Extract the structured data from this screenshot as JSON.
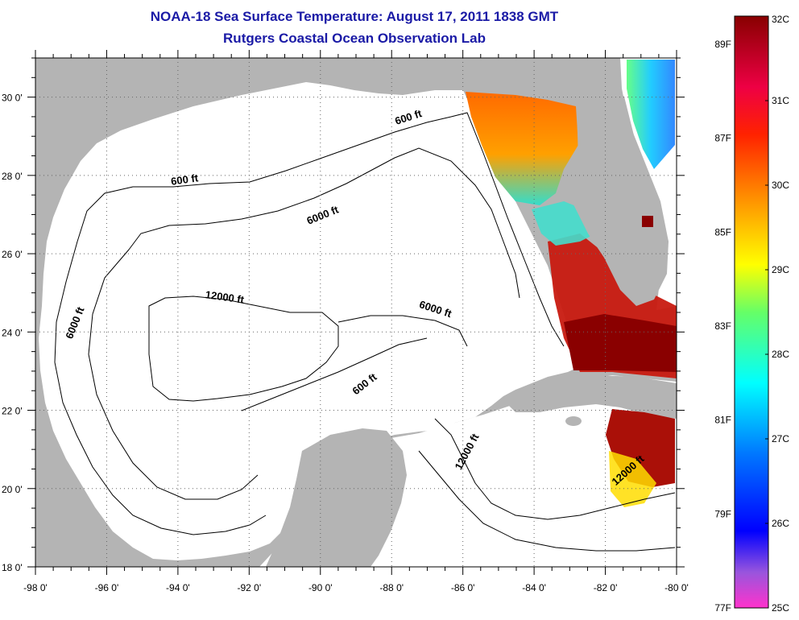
{
  "title": "NOAA-18 Sea Surface Temperature:  August 17, 2011 1838 GMT",
  "subtitle": "Rutgers Coastal Ocean Observation Lab",
  "axes": {
    "x_ticks": [
      "-98 0'",
      "-96 0'",
      "-94 0'",
      "-92 0'",
      "-90 0'",
      "-88 0'",
      "-86 0'",
      "-84 0'",
      "-82 0'",
      "-80 0'"
    ],
    "y_ticks": [
      "18 0'",
      "20 0'",
      "22 0'",
      "24 0'",
      "26 0'",
      "28 0'",
      "30 0'"
    ],
    "lon_range": [
      -98,
      -80
    ],
    "lat_range": [
      18,
      31
    ]
  },
  "contour_labels": [
    {
      "text": "600 ft",
      "lon": -93.8,
      "lat": 27.8,
      "angle": -8
    },
    {
      "text": "600 ft",
      "lon": -87.5,
      "lat": 29.4,
      "angle": -18
    },
    {
      "text": "6000 ft",
      "lon": -89.9,
      "lat": 26.9,
      "angle": -22
    },
    {
      "text": "6000 ft",
      "lon": -96.8,
      "lat": 24.2,
      "angle": -68
    },
    {
      "text": "12000 ft",
      "lon": -92.7,
      "lat": 24.8,
      "angle": 8
    },
    {
      "text": "6000 ft",
      "lon": -86.8,
      "lat": 24.5,
      "angle": 18
    },
    {
      "text": "600 ft",
      "lon": -88.7,
      "lat": 22.6,
      "angle": -38
    },
    {
      "text": "12000 ft",
      "lon": -85.8,
      "lat": 20.9,
      "angle": -62
    },
    {
      "text": "12000 ft",
      "lon": -81.3,
      "lat": 20.4,
      "angle": -42
    }
  ],
  "colorbar": {
    "celsius_labels": [
      "32C",
      "31C",
      "30C",
      "29C",
      "28C",
      "27C",
      "26C",
      "25C"
    ],
    "fahrenheit_labels": [
      "89F",
      "87F",
      "85F",
      "83F",
      "81F",
      "79F",
      "77F"
    ],
    "fahrenheit_values": [
      89,
      87,
      85,
      83,
      81,
      79,
      77
    ],
    "range_c": [
      25,
      32
    ],
    "colors": [
      "#ff33cc",
      "#8855dd",
      "#0000ff",
      "#0088ff",
      "#00ffff",
      "#33ff88",
      "#ffff00",
      "#ff8800",
      "#ff2200",
      "#dd0033",
      "#880000"
    ]
  },
  "colors": {
    "land": "#b4b4b4",
    "sea": "#ffffff",
    "title": "#1a1aa6"
  }
}
